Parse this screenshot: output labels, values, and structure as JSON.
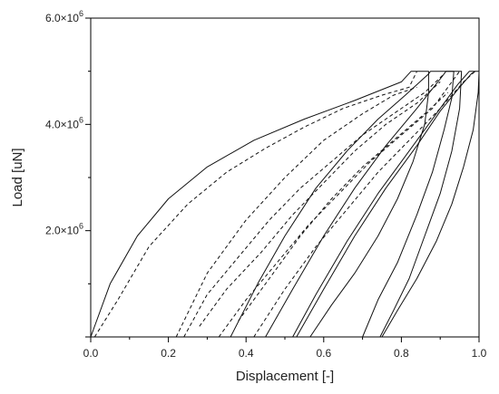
{
  "chart_data": {
    "type": "line",
    "title": "",
    "xlabel": "Displacement [-]",
    "ylabel": "Load [uN]",
    "xlim": [
      0.0,
      1.0
    ],
    "ylim": [
      0,
      6000000
    ],
    "x_ticks": [
      0.0,
      0.2,
      0.4,
      0.6,
      0.8,
      1.0
    ],
    "x_tick_labels": [
      "0.0",
      "0.2",
      "0.4",
      "0.6",
      "0.8",
      "1.0"
    ],
    "y_ticks": [
      2000000,
      4000000,
      6000000
    ],
    "y_tick_labels": [
      {
        "mantissa": "2.0×10",
        "exp": "6"
      },
      {
        "mantissa": "4.0×10",
        "exp": "6"
      },
      {
        "mantissa": "6.0×10",
        "exp": "6"
      }
    ],
    "grid": false,
    "legend": "none",
    "series": [
      {
        "style": "solid",
        "points": [
          [
            0.0,
            0
          ],
          [
            0.05,
            1000000
          ],
          [
            0.12,
            1900000
          ],
          [
            0.2,
            2600000
          ],
          [
            0.3,
            3200000
          ],
          [
            0.42,
            3700000
          ],
          [
            0.55,
            4100000
          ],
          [
            0.68,
            4450000
          ],
          [
            0.8,
            4800000
          ],
          [
            0.825,
            5000000
          ],
          [
            0.87,
            5000000
          ],
          [
            0.87,
            4600000
          ],
          [
            0.86,
            4000000
          ],
          [
            0.83,
            3300000
          ],
          [
            0.79,
            2600000
          ],
          [
            0.74,
            1900000
          ],
          [
            0.68,
            1200000
          ],
          [
            0.62,
            600000
          ],
          [
            0.565,
            0
          ]
        ]
      },
      {
        "style": "dashed",
        "points": [
          [
            0.01,
            0
          ],
          [
            0.07,
            700000
          ],
          [
            0.15,
            1700000
          ],
          [
            0.25,
            2500000
          ],
          [
            0.35,
            3100000
          ],
          [
            0.45,
            3550000
          ],
          [
            0.55,
            3950000
          ],
          [
            0.65,
            4300000
          ],
          [
            0.75,
            4550000
          ],
          [
            0.82,
            4700000
          ],
          [
            0.84,
            5000000
          ]
        ]
      },
      {
        "style": "dashed",
        "points": [
          [
            0.22,
            0
          ],
          [
            0.3,
            1200000
          ],
          [
            0.4,
            2200000
          ],
          [
            0.5,
            3000000
          ],
          [
            0.6,
            3700000
          ],
          [
            0.7,
            4200000
          ],
          [
            0.78,
            4550000
          ],
          [
            0.84,
            4700000
          ]
        ]
      },
      {
        "style": "solid",
        "points": [
          [
            0.36,
            0
          ],
          [
            0.43,
            1000000
          ],
          [
            0.5,
            1900000
          ],
          [
            0.58,
            2800000
          ],
          [
            0.66,
            3500000
          ],
          [
            0.74,
            4100000
          ],
          [
            0.81,
            4550000
          ],
          [
            0.87,
            4950000
          ],
          [
            0.875,
            5000000
          ],
          [
            0.935,
            5000000
          ],
          [
            0.93,
            4500000
          ],
          [
            0.91,
            3900000
          ],
          [
            0.88,
            3100000
          ],
          [
            0.84,
            2300000
          ],
          [
            0.79,
            1400000
          ],
          [
            0.74,
            700000
          ],
          [
            0.7,
            0
          ]
        ]
      },
      {
        "style": "solid",
        "points": [
          [
            0.45,
            0
          ],
          [
            0.52,
            900000
          ],
          [
            0.6,
            1900000
          ],
          [
            0.68,
            2800000
          ],
          [
            0.76,
            3600000
          ],
          [
            0.84,
            4300000
          ],
          [
            0.905,
            4900000
          ],
          [
            0.915,
            5000000
          ],
          [
            0.955,
            5000000
          ],
          [
            0.95,
            4300000
          ],
          [
            0.93,
            3500000
          ],
          [
            0.9,
            2700000
          ],
          [
            0.86,
            1900000
          ],
          [
            0.82,
            1100000
          ],
          [
            0.78,
            500000
          ],
          [
            0.745,
            0
          ]
        ]
      },
      {
        "style": "solid",
        "points": [
          [
            0.52,
            0
          ],
          [
            0.58,
            800000
          ],
          [
            0.66,
            1800000
          ],
          [
            0.74,
            2700000
          ],
          [
            0.82,
            3500000
          ],
          [
            0.89,
            4200000
          ],
          [
            0.945,
            4750000
          ],
          [
            0.975,
            5000000
          ],
          [
            1.0,
            5000000
          ],
          [
            0.998,
            4600000
          ],
          [
            0.985,
            3900000
          ],
          [
            0.96,
            3200000
          ],
          [
            0.93,
            2500000
          ],
          [
            0.89,
            1800000
          ],
          [
            0.84,
            1100000
          ],
          [
            0.79,
            500000
          ],
          [
            0.75,
            0
          ]
        ]
      },
      {
        "style": "solid",
        "points": [
          [
            0.53,
            0
          ],
          [
            0.6,
            900000
          ],
          [
            0.68,
            1900000
          ],
          [
            0.76,
            2800000
          ],
          [
            0.84,
            3600000
          ],
          [
            0.9,
            4250000
          ],
          [
            0.95,
            4700000
          ],
          [
            0.98,
            4950000
          ],
          [
            0.99,
            5000000
          ]
        ]
      },
      {
        "style": "dashed",
        "points": [
          [
            0.24,
            0
          ],
          [
            0.3,
            800000
          ],
          [
            0.38,
            1500000
          ],
          [
            0.46,
            2200000
          ],
          [
            0.54,
            2800000
          ],
          [
            0.62,
            3300000
          ],
          [
            0.7,
            3800000
          ],
          [
            0.78,
            4200000
          ],
          [
            0.86,
            4600000
          ],
          [
            0.91,
            4950000
          ]
        ]
      },
      {
        "style": "dashed",
        "points": [
          [
            0.33,
            0
          ],
          [
            0.4,
            700000
          ],
          [
            0.48,
            1400000
          ],
          [
            0.56,
            2100000
          ],
          [
            0.64,
            2700000
          ],
          [
            0.72,
            3300000
          ],
          [
            0.8,
            3800000
          ],
          [
            0.88,
            4300000
          ],
          [
            0.93,
            4800000
          ],
          [
            0.95,
            5000000
          ]
        ]
      },
      {
        "style": "dashed",
        "points": [
          [
            0.28,
            200000
          ],
          [
            0.35,
            900000
          ],
          [
            0.44,
            1600000
          ],
          [
            0.52,
            2300000
          ],
          [
            0.6,
            2900000
          ],
          [
            0.68,
            3500000
          ],
          [
            0.76,
            4000000
          ],
          [
            0.84,
            4400000
          ],
          [
            0.9,
            4800000
          ]
        ]
      },
      {
        "style": "dashed",
        "points": [
          [
            0.42,
            0
          ],
          [
            0.5,
            900000
          ],
          [
            0.58,
            1700000
          ],
          [
            0.66,
            2400000
          ],
          [
            0.74,
            3100000
          ],
          [
            0.82,
            3700000
          ],
          [
            0.9,
            4300000
          ],
          [
            0.96,
            4800000
          ],
          [
            0.99,
            5000000
          ]
        ]
      },
      {
        "style": "dashed",
        "points": [
          [
            0.38,
            300000
          ],
          [
            0.46,
            1100000
          ],
          [
            0.54,
            1900000
          ],
          [
            0.62,
            2600000
          ],
          [
            0.7,
            3200000
          ],
          [
            0.78,
            3700000
          ],
          [
            0.86,
            4200000
          ],
          [
            0.92,
            4600000
          ]
        ]
      }
    ]
  }
}
